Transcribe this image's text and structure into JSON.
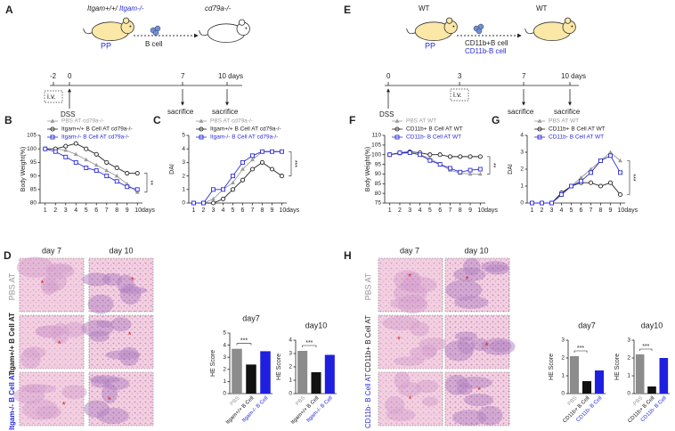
{
  "diagrams": {
    "A": {
      "panel": "A",
      "donor": [
        "Itgam+/+/ ",
        "Itgam-/-"
      ],
      "pp": "PP",
      "cell": "B cell",
      "recipient": "cd79a-/-",
      "times": [
        "-2",
        "0",
        "7",
        "10 days"
      ],
      "iv": "i.v.",
      "dss": "DSS",
      "end": "sacrifice"
    },
    "E": {
      "panel": "E",
      "donor": "WT",
      "recipient": "WT",
      "pp": "PP",
      "cells": [
        "CD11b+B cell",
        "CD11b-B cell"
      ],
      "times": [
        "0",
        "3",
        "7",
        "10 days"
      ],
      "iv": "i.v.",
      "dss": "DSS",
      "end": "sacrifice"
    }
  },
  "histology": {
    "D": {
      "panel": "D",
      "columns": [
        "day 7",
        "day 10"
      ],
      "rows": [
        "PBS AT",
        "Itgam+/+ B Cell AT",
        "Itgam-/- B Cell AT"
      ],
      "asterisk": "*"
    },
    "H": {
      "panel": "H",
      "columns": [
        "day 7",
        "day 10"
      ],
      "rows": [
        "PBS AT",
        "CD11b+ B Cell AT",
        "CD11b- B Cell AT"
      ],
      "asterisk": "*"
    }
  },
  "chart_data": [
    {
      "type": "line",
      "panel": "B",
      "ylabel": "Body Weight(%)",
      "x": [
        1,
        2,
        3,
        4,
        5,
        6,
        7,
        8,
        9,
        10
      ],
      "xlim": [
        0.5,
        10.5
      ],
      "xticks": [
        1,
        2,
        3,
        4,
        5,
        6,
        7,
        8,
        9,
        {
          "value": 10,
          "label": "10days"
        }
      ],
      "ylim": [
        80,
        105
      ],
      "yticks": [
        80,
        85,
        90,
        95,
        100,
        105
      ],
      "annotation": "**",
      "series": [
        {
          "name": "PBS AT cd79a-/-",
          "color": "#9a9a9a",
          "marker": "triangle",
          "values": [
            100,
            100,
            99.5,
            98,
            96,
            94,
            92,
            90,
            87,
            84
          ]
        },
        {
          "name": "Itgam+/+ B Cell AT cd79a-/-",
          "color": "#222222",
          "marker": "circle",
          "values": [
            100,
            100,
            101,
            102,
            100,
            98,
            95,
            93,
            91,
            91
          ]
        },
        {
          "name": "Itgam-/- B Cell AT cd79a-/-",
          "color": "#2b2bd9",
          "marker": "square",
          "values": [
            100,
            99,
            97,
            95,
            93,
            92,
            90,
            88,
            86,
            85
          ]
        }
      ]
    },
    {
      "type": "line",
      "panel": "C",
      "ylabel": "DAI",
      "x": [
        1,
        2,
        3,
        4,
        5,
        6,
        7,
        8,
        9,
        10
      ],
      "xlim": [
        0.5,
        10.5
      ],
      "xticks": [
        1,
        2,
        3,
        4,
        5,
        6,
        7,
        8,
        9,
        {
          "value": 10,
          "label": "10days"
        }
      ],
      "ylim": [
        0,
        5
      ],
      "yticks": [
        0,
        1,
        2,
        3,
        4,
        5
      ],
      "annotation": "***",
      "series": [
        {
          "name": "PBS AT cd79a-/-",
          "color": "#9a9a9a",
          "marker": "triangle",
          "values": [
            0,
            0,
            0.3,
            1,
            1.5,
            2.5,
            3.2,
            3.8,
            3.8,
            3.8
          ]
        },
        {
          "name": "Itgam+/+ B Cell AT cd79a-/-",
          "color": "#222222",
          "marker": "circle",
          "values": [
            0,
            0,
            0,
            0.3,
            1,
            1.7,
            2.5,
            3,
            2.5,
            2
          ]
        },
        {
          "name": "Itgam-/- B Cell AT cd79a-/-",
          "color": "#2b2bd9",
          "marker": "square",
          "values": [
            0,
            0,
            1,
            1,
            2,
            3,
            3.5,
            3.8,
            3.8,
            3.8
          ]
        }
      ]
    },
    {
      "type": "line",
      "panel": "F",
      "ylabel": "Body Weight(%)",
      "x": [
        1,
        2,
        3,
        4,
        5,
        6,
        7,
        8,
        9,
        10
      ],
      "xlim": [
        0.5,
        10.5
      ],
      "xticks": [
        1,
        2,
        3,
        4,
        5,
        6,
        7,
        8,
        9,
        {
          "value": 10,
          "label": "10days"
        }
      ],
      "ylim": [
        75,
        110
      ],
      "yticks": [
        75,
        80,
        85,
        90,
        95,
        100,
        105,
        110
      ],
      "annotation": "**",
      "series": [
        {
          "name": "PBS AT WT",
          "color": "#9a9a9a",
          "marker": "triangle",
          "values": [
            100,
            100.5,
            101,
            100,
            98,
            95,
            92,
            90.5,
            90,
            90
          ]
        },
        {
          "name": "CD11b+ B Cell AT WT",
          "color": "#222222",
          "marker": "circle",
          "values": [
            100,
            101,
            101.5,
            101,
            100,
            100,
            99,
            99,
            99,
            99
          ]
        },
        {
          "name": "CD11b- B Cell AT WT",
          "color": "#2b2bd9",
          "marker": "square",
          "values": [
            100,
            101,
            101,
            100,
            97,
            95,
            93,
            91,
            92,
            92.5
          ]
        }
      ]
    },
    {
      "type": "line",
      "panel": "G",
      "ylabel": "DAI",
      "x": [
        1,
        2,
        3,
        4,
        5,
        6,
        7,
        8,
        9,
        10
      ],
      "xlim": [
        0.5,
        10.5
      ],
      "xticks": [
        1,
        2,
        3,
        4,
        5,
        6,
        7,
        8,
        9,
        {
          "value": 10,
          "label": "10days"
        }
      ],
      "ylim": [
        0,
        4
      ],
      "yticks": [
        0,
        1,
        2,
        3,
        4
      ],
      "annotation": "***",
      "series": [
        {
          "name": "PBS AT WT",
          "color": "#9a9a9a",
          "marker": "triangle",
          "values": [
            0,
            0,
            0,
            0.5,
            1,
            1.5,
            2,
            2.5,
            3,
            2.5
          ]
        },
        {
          "name": "CD11b+ B Cell AT WT",
          "color": "#222222",
          "marker": "circle",
          "values": [
            0,
            0,
            0,
            0.6,
            1,
            1.2,
            1.2,
            1,
            1.2,
            0.5
          ]
        },
        {
          "name": "CD11b- B Cell AT WT",
          "color": "#2b2bd9",
          "marker": "square",
          "values": [
            0,
            0,
            0,
            0.5,
            1,
            1.3,
            1.8,
            2.5,
            2.8,
            1.8
          ]
        }
      ]
    },
    {
      "type": "bar",
      "title": "day7",
      "ylabel": "HE Score",
      "categories": [
        "PBS",
        "Itgam+/+ B Cell",
        "Itgam-/- B Cell"
      ],
      "values": [
        3.7,
        2.4,
        3.5
      ],
      "colors": [
        "#8c8c8c",
        "#111111",
        "#1f1fe0"
      ],
      "ylim": [
        0,
        5
      ],
      "yticks": [
        0,
        1,
        2,
        3,
        4,
        5
      ],
      "annotation": "***"
    },
    {
      "type": "bar",
      "title": "day10",
      "ylabel": "HE Score",
      "categories": [
        "PBS",
        "Itgam+/+ B Cell",
        "Itgam-/- B Cell"
      ],
      "values": [
        3.2,
        1.6,
        2.9
      ],
      "colors": [
        "#8c8c8c",
        "#111111",
        "#1f1fe0"
      ],
      "ylim": [
        0,
        4
      ],
      "yticks": [
        0,
        1,
        2,
        3,
        4
      ],
      "annotation": "***"
    },
    {
      "type": "bar",
      "title": "day7",
      "ylabel": "HE Score",
      "categories": [
        "PBS",
        "CD11b+ B Cell",
        "CD11b- B Cell"
      ],
      "values": [
        2.1,
        0.7,
        1.3
      ],
      "colors": [
        "#8c8c8c",
        "#111111",
        "#1f1fe0"
      ],
      "ylim": [
        0,
        3
      ],
      "yticks": [
        0,
        1,
        2,
        3
      ],
      "annotation": "***"
    },
    {
      "type": "bar",
      "title": "day10",
      "ylabel": "HE Score",
      "categories": [
        "PBS",
        "CD11b+ B Cell",
        "CD11b- B Cell"
      ],
      "values": [
        2.2,
        0.4,
        2.0
      ],
      "colors": [
        "#8c8c8c",
        "#111111",
        "#1f1fe0"
      ],
      "ylim": [
        0,
        3
      ],
      "yticks": [
        0,
        1,
        2,
        3
      ],
      "annotation": "***"
    }
  ]
}
